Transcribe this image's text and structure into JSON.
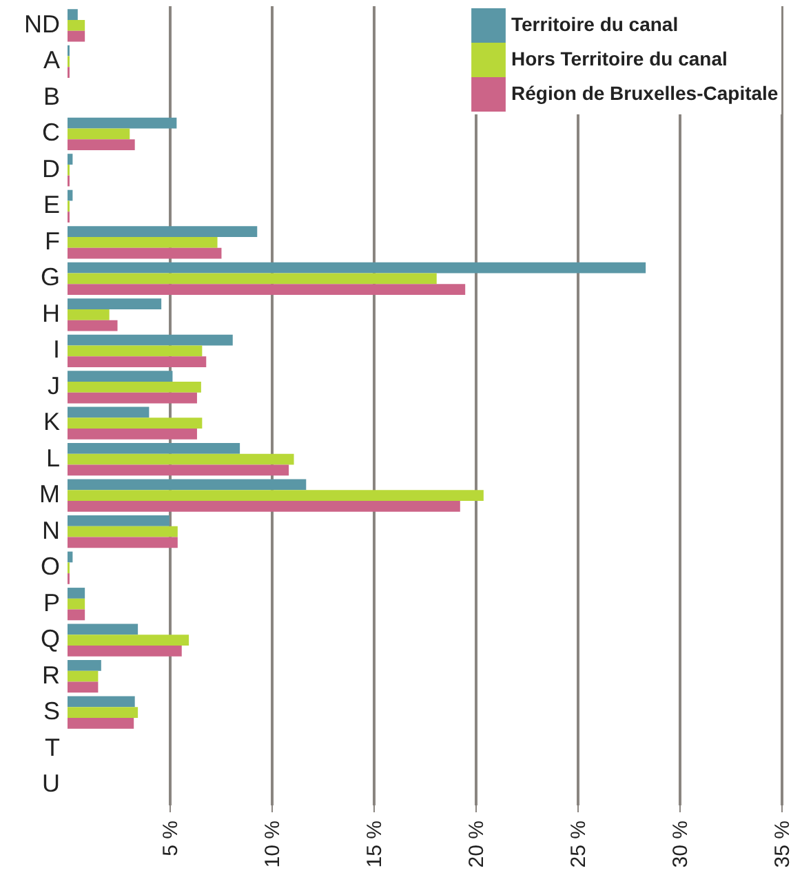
{
  "chart_data": {
    "type": "bar",
    "orientation": "horizontal",
    "categories": [
      "ND",
      "A",
      "B",
      "C",
      "D",
      "E",
      "F",
      "G",
      "H",
      "I",
      "J",
      "K",
      "L",
      "M",
      "N",
      "O",
      "P",
      "Q",
      "R",
      "S",
      "T",
      "U"
    ],
    "series": [
      {
        "name": "Territoire du canal",
        "color": "#5a97a6",
        "values": [
          0.5,
          0.1,
          0,
          5.35,
          0.25,
          0.25,
          9.3,
          28.35,
          4.6,
          8.1,
          5.15,
          4.0,
          8.45,
          11.7,
          5.0,
          0.25,
          0.85,
          3.45,
          1.65,
          3.3,
          0,
          0
        ]
      },
      {
        "name": "Hors Territoire du canal",
        "color": "#b8d838",
        "values": [
          0.85,
          0.1,
          0,
          3.05,
          0.1,
          0.1,
          7.35,
          18.1,
          2.05,
          6.6,
          6.55,
          6.6,
          11.1,
          20.4,
          5.4,
          0.1,
          0.85,
          5.95,
          1.5,
          3.45,
          0,
          0
        ]
      },
      {
        "name": "Région de Bruxelles-Capitale",
        "color": "#cc6488",
        "values": [
          0.85,
          0.1,
          0,
          3.3,
          0.1,
          0.1,
          7.55,
          19.5,
          2.45,
          6.8,
          6.35,
          6.35,
          10.85,
          19.25,
          5.4,
          0.1,
          0.85,
          5.6,
          1.5,
          3.25,
          0,
          0
        ]
      }
    ],
    "xlim": [
      0,
      35
    ],
    "xticks": [
      {
        "value": 5,
        "label": "5 %"
      },
      {
        "value": 10,
        "label": "10 %"
      },
      {
        "value": 15,
        "label": "15 %"
      },
      {
        "value": 20,
        "label": "20 %"
      },
      {
        "value": 25,
        "label": "25 %"
      },
      {
        "value": 30,
        "label": "30 %"
      },
      {
        "value": 35,
        "label": "35 %"
      }
    ],
    "grid": "x",
    "legend": "top right"
  }
}
